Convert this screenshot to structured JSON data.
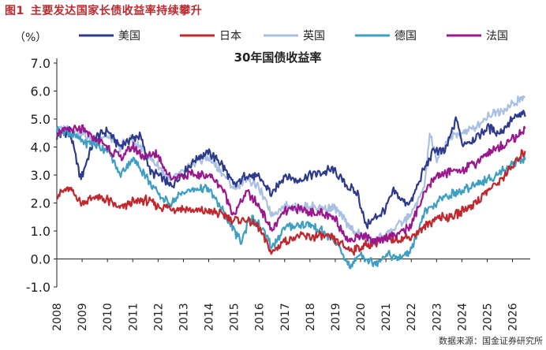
{
  "figure": {
    "number": "图1",
    "title": "主要发达国家长债收益率持续攀升",
    "source": "数据来源：国金证券研究所"
  },
  "chart_data": {
    "type": "line",
    "title": "30年国债收益率",
    "ylabel": "（%）",
    "xlabel": "",
    "ylim": [
      -1.0,
      7.0
    ],
    "yticks": [
      "7.0",
      "6.0",
      "5.0",
      "4.0",
      "3.0",
      "2.0",
      "1.0",
      "0.0",
      "-1.0"
    ],
    "xticks": [
      "2008",
      "2009",
      "2010",
      "2011",
      "2012",
      "2013",
      "2014",
      "2015",
      "2016",
      "2017",
      "2018",
      "2019",
      "2020",
      "2021",
      "2022",
      "2023",
      "2024",
      "2025",
      "2026"
    ],
    "xlim": [
      2008.0,
      2026.7
    ],
    "grid": false,
    "legend_position": "top",
    "series": [
      {
        "name": "美国",
        "color": "#2e3b8c",
        "x": [
          2008.0,
          2008.5,
          2008.9,
          2009.0,
          2009.5,
          2010.0,
          2010.5,
          2010.9,
          2011.3,
          2011.7,
          2012.0,
          2012.5,
          2013.0,
          2013.5,
          2014.0,
          2014.5,
          2015.0,
          2015.5,
          2016.0,
          2016.5,
          2017.0,
          2017.5,
          2018.0,
          2018.5,
          2018.9,
          2019.5,
          2019.9,
          2020.2,
          2020.5,
          2021.0,
          2021.3,
          2021.8,
          2022.0,
          2022.5,
          2022.9,
          2023.3,
          2023.8,
          2024.0,
          2024.5,
          2025.0,
          2025.5,
          2026.0,
          2026.5
        ],
        "y": [
          4.4,
          4.6,
          3.0,
          3.0,
          4.3,
          4.6,
          4.0,
          4.3,
          4.4,
          3.1,
          3.0,
          2.6,
          3.1,
          3.6,
          3.8,
          3.4,
          2.6,
          3.0,
          2.9,
          2.3,
          3.0,
          2.8,
          3.0,
          3.1,
          3.2,
          2.6,
          2.3,
          1.2,
          1.4,
          1.8,
          2.4,
          2.0,
          2.0,
          3.2,
          3.9,
          3.8,
          5.0,
          4.1,
          4.3,
          4.7,
          4.5,
          5.0,
          5.2
        ]
      },
      {
        "name": "日本",
        "color": "#c0282e",
        "x": [
          2008.0,
          2008.5,
          2009.0,
          2009.5,
          2010.0,
          2010.5,
          2010.9,
          2011.5,
          2012.0,
          2012.5,
          2013.0,
          2013.5,
          2014.0,
          2014.5,
          2015.0,
          2015.5,
          2016.0,
          2016.5,
          2016.9,
          2017.5,
          2018.0,
          2018.5,
          2019.0,
          2019.6,
          2020.0,
          2020.5,
          2021.0,
          2021.5,
          2022.0,
          2022.5,
          2023.0,
          2023.5,
          2024.0,
          2024.5,
          2025.0,
          2025.5,
          2026.0,
          2026.5
        ],
        "y": [
          2.3,
          2.5,
          2.0,
          2.2,
          2.1,
          1.8,
          2.0,
          2.1,
          1.9,
          1.8,
          1.8,
          1.7,
          1.7,
          1.6,
          1.4,
          1.4,
          1.1,
          0.2,
          0.6,
          0.8,
          0.8,
          0.8,
          0.7,
          0.3,
          0.4,
          0.6,
          0.7,
          0.7,
          0.8,
          1.1,
          1.5,
          1.5,
          1.7,
          2.0,
          2.4,
          2.8,
          3.3,
          3.9
        ]
      },
      {
        "name": "英国",
        "color": "#a9c0e3",
        "x": [
          2008.0,
          2008.5,
          2009.0,
          2009.5,
          2010.0,
          2010.5,
          2010.9,
          2011.5,
          2012.0,
          2012.5,
          2013.0,
          2013.5,
          2014.0,
          2014.5,
          2015.0,
          2015.5,
          2016.0,
          2016.5,
          2017.0,
          2017.5,
          2018.0,
          2018.5,
          2019.0,
          2019.5,
          2019.9,
          2020.2,
          2020.5,
          2021.0,
          2021.5,
          2022.0,
          2022.5,
          2022.75,
          2023.0,
          2023.5,
          2024.0,
          2024.5,
          2025.0,
          2025.5,
          2026.0,
          2026.5
        ],
        "y": [
          4.6,
          4.7,
          4.5,
          4.2,
          4.4,
          4.0,
          4.3,
          3.8,
          3.3,
          2.8,
          3.1,
          3.5,
          3.6,
          3.1,
          2.5,
          2.9,
          2.5,
          1.6,
          1.9,
          1.8,
          1.9,
          1.8,
          1.8,
          1.2,
          0.9,
          0.7,
          0.6,
          0.9,
          1.2,
          1.6,
          2.5,
          4.5,
          3.5,
          4.3,
          4.5,
          4.7,
          5.1,
          5.3,
          5.5,
          5.8
        ]
      },
      {
        "name": "德国",
        "color": "#3f9ec4",
        "x": [
          2008.0,
          2008.5,
          2009.0,
          2009.5,
          2010.0,
          2010.5,
          2011.0,
          2011.5,
          2012.0,
          2012.5,
          2013.0,
          2013.5,
          2014.0,
          2014.5,
          2015.0,
          2015.3,
          2015.6,
          2016.0,
          2016.5,
          2017.0,
          2017.5,
          2018.0,
          2018.5,
          2019.0,
          2019.6,
          2020.0,
          2020.5,
          2021.0,
          2021.5,
          2022.0,
          2022.5,
          2023.0,
          2023.5,
          2024.0,
          2024.5,
          2025.0,
          2025.5,
          2026.0,
          2026.5
        ],
        "y": [
          4.6,
          4.5,
          4.2,
          4.1,
          3.9,
          3.0,
          3.6,
          3.0,
          2.3,
          2.0,
          2.4,
          2.5,
          2.5,
          1.8,
          1.0,
          0.6,
          1.5,
          1.2,
          0.4,
          1.1,
          1.2,
          1.2,
          1.0,
          0.6,
          -0.3,
          0.2,
          -0.2,
          0.2,
          0.0,
          0.3,
          1.6,
          2.0,
          2.3,
          2.4,
          2.7,
          2.8,
          3.1,
          3.4,
          3.6
        ]
      },
      {
        "name": "法国",
        "color": "#9b178e",
        "x": [
          2008.0,
          2008.5,
          2009.0,
          2009.5,
          2010.0,
          2010.5,
          2011.0,
          2011.5,
          2011.9,
          2012.3,
          2012.5,
          2013.0,
          2013.5,
          2014.0,
          2014.5,
          2015.0,
          2015.5,
          2016.0,
          2016.5,
          2017.0,
          2017.5,
          2018.0,
          2018.5,
          2019.0,
          2019.6,
          2020.0,
          2020.5,
          2021.0,
          2021.5,
          2022.0,
          2022.5,
          2023.0,
          2023.5,
          2024.0,
          2024.5,
          2025.0,
          2025.5,
          2026.0,
          2026.5
        ],
        "y": [
          4.5,
          4.6,
          4.6,
          4.3,
          4.0,
          3.6,
          4.0,
          3.6,
          3.8,
          3.2,
          2.9,
          3.0,
          3.0,
          3.0,
          2.6,
          1.6,
          2.4,
          1.9,
          1.0,
          1.7,
          1.8,
          1.7,
          1.6,
          1.4,
          0.6,
          0.9,
          0.6,
          0.8,
          0.9,
          1.2,
          2.3,
          3.0,
          3.1,
          3.2,
          3.4,
          3.8,
          4.0,
          4.3,
          4.6
        ]
      }
    ]
  }
}
